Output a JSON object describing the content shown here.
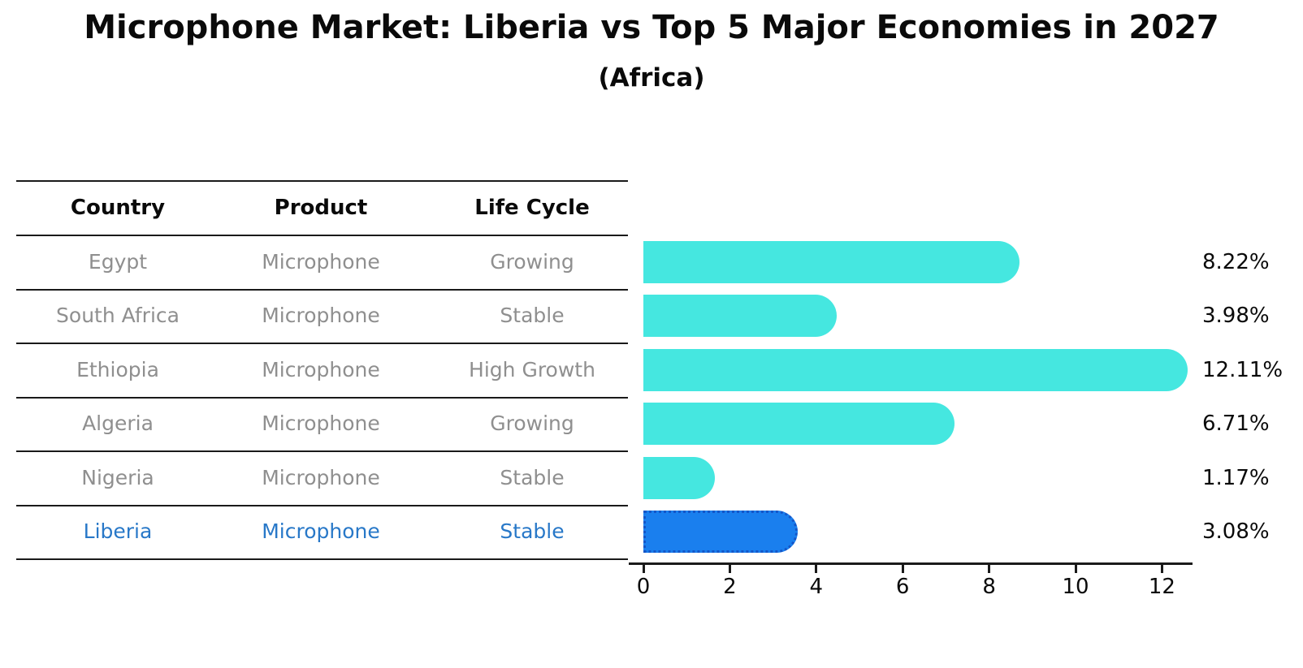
{
  "header": {
    "title": "Microphone Market: Liberia vs Top 5 Major Economies in 2027",
    "subtitle": "(Africa)"
  },
  "table": {
    "columns": [
      "Country",
      "Product",
      "Life Cycle"
    ],
    "rows": [
      {
        "country": "Egypt",
        "product": "Microphone",
        "life_cycle": "Growing",
        "highlighted": false
      },
      {
        "country": "South Africa",
        "product": "Microphone",
        "life_cycle": "Stable",
        "highlighted": false
      },
      {
        "country": "Ethiopia",
        "product": "Microphone",
        "life_cycle": "High Growth",
        "highlighted": false
      },
      {
        "country": "Algeria",
        "product": "Microphone",
        "life_cycle": "Growing",
        "highlighted": false
      },
      {
        "country": "Nigeria",
        "product": "Microphone",
        "life_cycle": "Stable",
        "highlighted": false
      },
      {
        "country": "Liberia",
        "product": "Microphone",
        "life_cycle": "Stable",
        "highlighted": true
      }
    ]
  },
  "chart_data": {
    "type": "bar",
    "orientation": "horizontal",
    "title": "Microphone Market: Liberia vs Top 5 Major Economies in 2027",
    "subtitle": "(Africa)",
    "categories": [
      "Egypt",
      "South Africa",
      "Ethiopia",
      "Algeria",
      "Nigeria",
      "Liberia"
    ],
    "values": [
      8.22,
      3.98,
      12.11,
      6.71,
      1.17,
      3.08
    ],
    "value_labels": [
      "8.22%",
      "3.98%",
      "12.11%",
      "6.71%",
      "1.17%",
      "3.08%"
    ],
    "unit": "%",
    "xticks": [
      0,
      2,
      4,
      6,
      8,
      10,
      12
    ],
    "xlim": [
      0,
      12.7
    ],
    "highlight_index": 5,
    "grid": false,
    "legend": null,
    "colors": {
      "bar": "#45e7e0",
      "highlight_bar": "#1a7fee",
      "highlight_border": "#1456c8",
      "highlight_text": "#2878c8",
      "row_text": "#8f8f8f",
      "axis": "#1a1a1a"
    }
  }
}
